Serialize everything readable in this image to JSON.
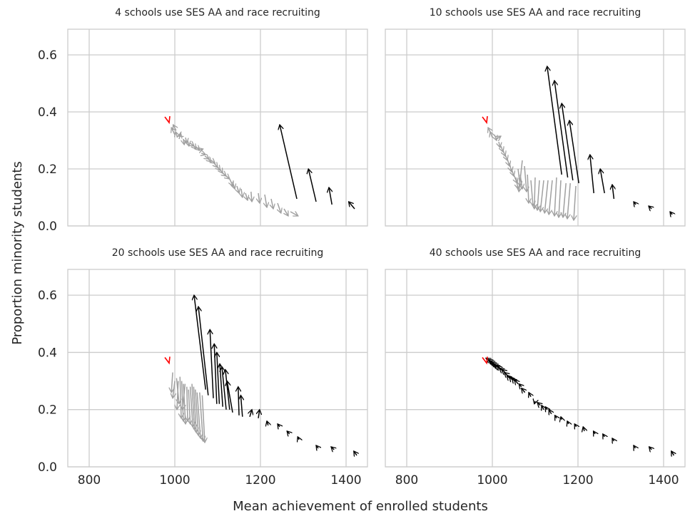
{
  "figure": {
    "xlabel": "Mean achievement of enrolled students",
    "ylabel": "Proportion minority students"
  },
  "colors": {
    "black_arrow": "#000000",
    "gray_arrow": "#a0a0a0",
    "red_marker": "#ff0000",
    "grid": "#cccccc",
    "text": "#262626"
  },
  "chart_data": [
    {
      "type": "quiver",
      "title": "4 schools use SES AA and race recruiting",
      "xlim": [
        750,
        1450
      ],
      "ylim": [
        0,
        0.69
      ],
      "xticks": [
        800,
        1000,
        1200,
        1400
      ],
      "yticks": [
        0.0,
        0.2,
        0.4,
        0.6
      ],
      "grid": true,
      "show_xticklabels": false,
      "show_yticklabels": true,
      "red_marker": [
        985,
        0.37
      ],
      "gray_arrows": [
        [
          1000,
          0.32,
          992,
          0.345
        ],
        [
          1003,
          0.335,
          996,
          0.355
        ],
        [
          1006,
          0.31,
          1002,
          0.33
        ],
        [
          1010,
          0.305,
          1014,
          0.325
        ],
        [
          1015,
          0.32,
          1008,
          0.315
        ],
        [
          1020,
          0.305,
          1022,
          0.285
        ],
        [
          1025,
          0.31,
          1028,
          0.29
        ],
        [
          1030,
          0.3,
          1033,
          0.28
        ],
        [
          1036,
          0.29,
          1045,
          0.28
        ],
        [
          1042,
          0.285,
          1050,
          0.27
        ],
        [
          1048,
          0.28,
          1058,
          0.265
        ],
        [
          1055,
          0.265,
          1066,
          0.27
        ],
        [
          1062,
          0.255,
          1072,
          0.25
        ],
        [
          1070,
          0.245,
          1080,
          0.235
        ],
        [
          1078,
          0.235,
          1085,
          0.225
        ],
        [
          1085,
          0.23,
          1094,
          0.22
        ],
        [
          1092,
          0.22,
          1100,
          0.205
        ],
        [
          1098,
          0.21,
          1106,
          0.195
        ],
        [
          1105,
          0.2,
          1112,
          0.185
        ],
        [
          1112,
          0.185,
          1120,
          0.175
        ],
        [
          1120,
          0.175,
          1128,
          0.165
        ],
        [
          1128,
          0.165,
          1136,
          0.14
        ],
        [
          1135,
          0.155,
          1140,
          0.13
        ],
        [
          1145,
          0.14,
          1150,
          0.115
        ],
        [
          1155,
          0.13,
          1158,
          0.1
        ],
        [
          1165,
          0.115,
          1170,
          0.09
        ],
        [
          1178,
          0.12,
          1180,
          0.085
        ],
        [
          1195,
          0.115,
          1198,
          0.08
        ],
        [
          1210,
          0.11,
          1215,
          0.065
        ],
        [
          1225,
          0.095,
          1230,
          0.06
        ],
        [
          1240,
          0.08,
          1248,
          0.045
        ],
        [
          1255,
          0.06,
          1265,
          0.035
        ],
        [
          1270,
          0.05,
          1288,
          0.035
        ]
      ],
      "black_arrows": [
        [
          1285,
          0.095,
          1245,
          0.355
        ],
        [
          1330,
          0.085,
          1312,
          0.2
        ],
        [
          1367,
          0.075,
          1360,
          0.135
        ],
        [
          1420,
          0.06,
          1406,
          0.085
        ]
      ]
    },
    {
      "type": "quiver",
      "title": "10 schools use SES AA and race recruiting",
      "xlim": [
        750,
        1450
      ],
      "ylim": [
        0,
        0.69
      ],
      "xticks": [
        800,
        1000,
        1200,
        1400
      ],
      "yticks": [
        0.0,
        0.2,
        0.4,
        0.6
      ],
      "grid": true,
      "show_xticklabels": false,
      "show_yticklabels": false,
      "red_marker": [
        985,
        0.37
      ],
      "gray_arrows": [
        [
          995,
          0.33,
          990,
          0.345
        ],
        [
          1000,
          0.31,
          995,
          0.33
        ],
        [
          1005,
          0.32,
          1010,
          0.3
        ],
        [
          1010,
          0.305,
          1020,
          0.315
        ],
        [
          1015,
          0.295,
          1018,
          0.275
        ],
        [
          1020,
          0.28,
          1025,
          0.26
        ],
        [
          1025,
          0.265,
          1030,
          0.245
        ],
        [
          1030,
          0.25,
          1035,
          0.23
        ],
        [
          1035,
          0.235,
          1040,
          0.21
        ],
        [
          1040,
          0.22,
          1045,
          0.19
        ],
        [
          1045,
          0.2,
          1050,
          0.175
        ],
        [
          1050,
          0.18,
          1058,
          0.15
        ],
        [
          1055,
          0.17,
          1060,
          0.13
        ],
        [
          1060,
          0.2,
          1065,
          0.14
        ],
        [
          1065,
          0.18,
          1070,
          0.13
        ],
        [
          1070,
          0.23,
          1062,
          0.12
        ],
        [
          1075,
          0.21,
          1080,
          0.12
        ],
        [
          1082,
          0.18,
          1085,
          0.08
        ],
        [
          1090,
          0.16,
          1095,
          0.07
        ],
        [
          1100,
          0.17,
          1098,
          0.06
        ],
        [
          1110,
          0.16,
          1105,
          0.055
        ],
        [
          1120,
          0.16,
          1112,
          0.05
        ],
        [
          1130,
          0.16,
          1122,
          0.045
        ],
        [
          1140,
          0.16,
          1132,
          0.04
        ],
        [
          1150,
          0.17,
          1145,
          0.035
        ],
        [
          1160,
          0.16,
          1155,
          0.03
        ],
        [
          1172,
          0.15,
          1165,
          0.03
        ],
        [
          1182,
          0.15,
          1175,
          0.025
        ],
        [
          1195,
          0.14,
          1190,
          0.02
        ]
      ],
      "black_arrows": [
        [
          1162,
          0.18,
          1128,
          0.56
        ],
        [
          1176,
          0.17,
          1145,
          0.51
        ],
        [
          1188,
          0.16,
          1162,
          0.43
        ],
        [
          1202,
          0.15,
          1180,
          0.37
        ],
        [
          1237,
          0.115,
          1228,
          0.25
        ],
        [
          1262,
          0.115,
          1252,
          0.2
        ],
        [
          1284,
          0.095,
          1280,
          0.145
        ],
        [
          1335,
          0.075,
          1330,
          0.085
        ],
        [
          1372,
          0.06,
          1365,
          0.07
        ],
        [
          1420,
          0.04,
          1415,
          0.05
        ]
      ]
    },
    {
      "type": "quiver",
      "title": "20 schools use SES AA and race recruiting",
      "xlim": [
        750,
        1450
      ],
      "ylim": [
        0,
        0.69
      ],
      "xticks": [
        800,
        1000,
        1200,
        1400
      ],
      "yticks": [
        0.0,
        0.2,
        0.4,
        0.6
      ],
      "grid": true,
      "show_xticklabels": true,
      "show_yticklabels": true,
      "red_marker": [
        985,
        0.37
      ],
      "gray_arrows": [
        [
          995,
          0.33,
          992,
          0.26
        ],
        [
          1000,
          0.3,
          995,
          0.24
        ],
        [
          1004,
          0.31,
          1010,
          0.22
        ],
        [
          1008,
          0.3,
          1005,
          0.2
        ],
        [
          1012,
          0.315,
          1015,
          0.17
        ],
        [
          1016,
          0.3,
          1020,
          0.16
        ],
        [
          1020,
          0.29,
          1025,
          0.15
        ],
        [
          1024,
          0.29,
          1018,
          0.2
        ],
        [
          1028,
          0.28,
          1030,
          0.16
        ],
        [
          1032,
          0.27,
          1036,
          0.15
        ],
        [
          1036,
          0.28,
          1042,
          0.14
        ],
        [
          1040,
          0.29,
          1046,
          0.13
        ],
        [
          1044,
          0.28,
          1050,
          0.12
        ],
        [
          1048,
          0.27,
          1055,
          0.11
        ],
        [
          1052,
          0.26,
          1060,
          0.1
        ],
        [
          1058,
          0.26,
          1066,
          0.09
        ],
        [
          1064,
          0.25,
          1070,
          0.085
        ]
      ],
      "black_arrows": [
        [
          1072,
          0.27,
          1045,
          0.6
        ],
        [
          1078,
          0.25,
          1055,
          0.56
        ],
        [
          1090,
          0.24,
          1082,
          0.48
        ],
        [
          1098,
          0.22,
          1092,
          0.43
        ],
        [
          1104,
          0.22,
          1098,
          0.4
        ],
        [
          1112,
          0.21,
          1105,
          0.36
        ],
        [
          1120,
          0.2,
          1110,
          0.35
        ],
        [
          1128,
          0.2,
          1118,
          0.34
        ],
        [
          1135,
          0.19,
          1122,
          0.3
        ],
        [
          1150,
          0.18,
          1148,
          0.28
        ],
        [
          1158,
          0.175,
          1154,
          0.25
        ],
        [
          1175,
          0.175,
          1180,
          0.2
        ],
        [
          1195,
          0.17,
          1198,
          0.2
        ],
        [
          1218,
          0.145,
          1215,
          0.16
        ],
        [
          1245,
          0.14,
          1240,
          0.15
        ],
        [
          1268,
          0.115,
          1262,
          0.125
        ],
        [
          1290,
          0.095,
          1287,
          0.105
        ],
        [
          1335,
          0.065,
          1330,
          0.075
        ],
        [
          1372,
          0.06,
          1365,
          0.07
        ],
        [
          1425,
          0.04,
          1418,
          0.055
        ]
      ]
    },
    {
      "type": "quiver",
      "title": "40 schools use SES AA and race recruiting",
      "xlim": [
        750,
        1450
      ],
      "ylim": [
        0,
        0.69
      ],
      "xticks": [
        800,
        1000,
        1200,
        1400
      ],
      "yticks": [
        0.0,
        0.2,
        0.4,
        0.6
      ],
      "grid": true,
      "show_xticklabels": true,
      "show_yticklabels": false,
      "red_marker": [
        985,
        0.37
      ],
      "gray_arrows": [],
      "black_arrows": [
        [
          995,
          0.37,
          985,
          0.38
        ],
        [
          1000,
          0.365,
          990,
          0.375
        ],
        [
          1004,
          0.36,
          994,
          0.37
        ],
        [
          1008,
          0.355,
          998,
          0.365
        ],
        [
          1012,
          0.35,
          1002,
          0.36
        ],
        [
          1016,
          0.345,
          1006,
          0.355
        ],
        [
          1020,
          0.34,
          1012,
          0.355
        ],
        [
          1025,
          0.335,
          1016,
          0.345
        ],
        [
          1030,
          0.33,
          1022,
          0.34
        ],
        [
          1035,
          0.32,
          1028,
          0.33
        ],
        [
          1040,
          0.31,
          1034,
          0.32
        ],
        [
          1046,
          0.305,
          1040,
          0.315
        ],
        [
          1052,
          0.3,
          1046,
          0.31
        ],
        [
          1060,
          0.29,
          1052,
          0.305
        ],
        [
          1068,
          0.28,
          1062,
          0.29
        ],
        [
          1076,
          0.26,
          1068,
          0.275
        ],
        [
          1090,
          0.245,
          1085,
          0.26
        ],
        [
          1100,
          0.23,
          1098,
          0.22
        ],
        [
          1112,
          0.215,
          1105,
          0.225
        ],
        [
          1120,
          0.2,
          1115,
          0.215
        ],
        [
          1128,
          0.2,
          1124,
          0.21
        ],
        [
          1138,
          0.185,
          1132,
          0.2
        ],
        [
          1150,
          0.17,
          1146,
          0.18
        ],
        [
          1162,
          0.165,
          1160,
          0.175
        ],
        [
          1178,
          0.15,
          1175,
          0.16
        ],
        [
          1196,
          0.14,
          1192,
          0.15
        ],
        [
          1215,
          0.125,
          1212,
          0.14
        ],
        [
          1240,
          0.115,
          1236,
          0.125
        ],
        [
          1262,
          0.105,
          1258,
          0.115
        ],
        [
          1284,
          0.09,
          1280,
          0.1
        ],
        [
          1334,
          0.065,
          1330,
          0.075
        ],
        [
          1372,
          0.06,
          1366,
          0.07
        ],
        [
          1424,
          0.04,
          1418,
          0.055
        ]
      ]
    }
  ]
}
